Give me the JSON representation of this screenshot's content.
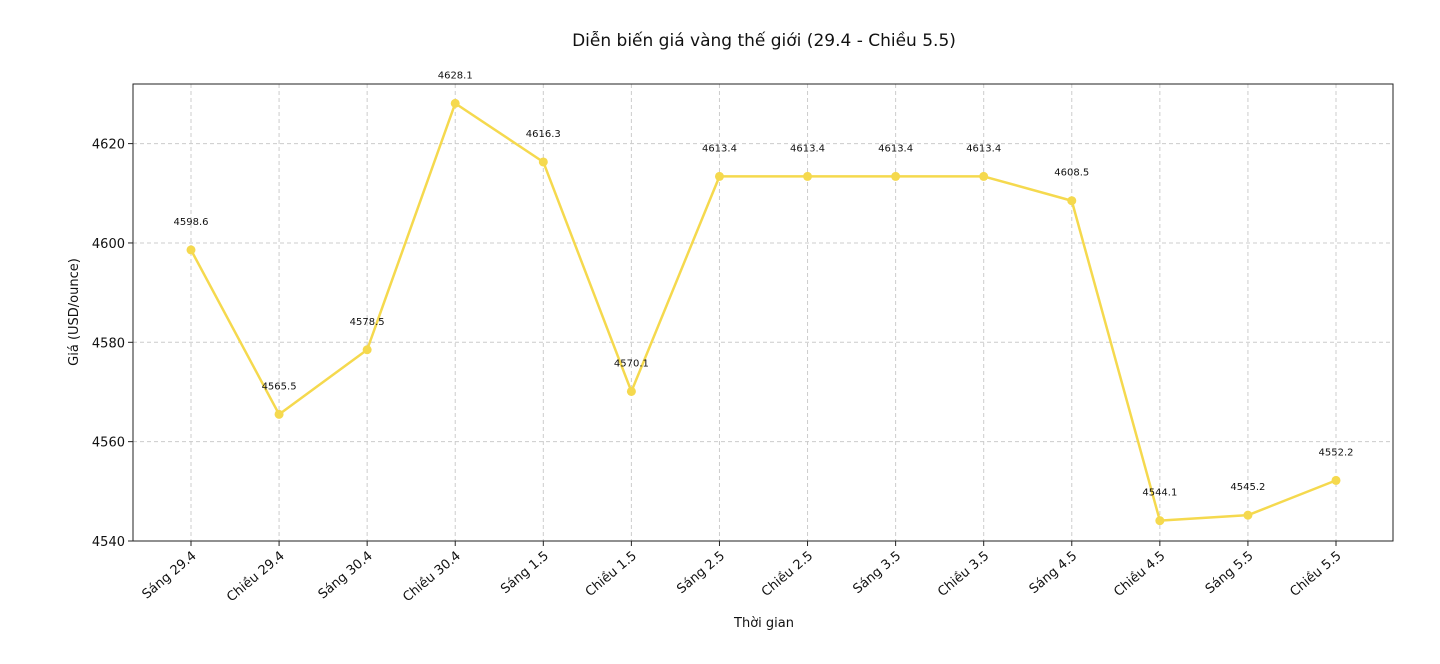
{
  "chart_data": {
    "type": "line",
    "title": "Diễn biến giá vàng thế giới (29.4 - Chiều 5.5)",
    "xlabel": "Thời gian",
    "ylabel": "Giá (USD/ounce)",
    "categories": [
      "Sáng 29.4",
      "Chiều 29.4",
      "Sáng 30.4",
      "Chiều 30.4",
      "Sáng 1.5",
      "Chiều 1.5",
      "Sáng 2.5",
      "Chiều 2.5",
      "Sáng 3.5",
      "Chiều 3.5",
      "Sáng 4.5",
      "Chiều 4.5",
      "Sáng 5.5",
      "Chiều 5.5"
    ],
    "series": [
      {
        "values": [
          4598.6,
          4565.5,
          4578.5,
          4628.1,
          4616.3,
          4570.1,
          4613.4,
          4613.4,
          4613.4,
          4613.4,
          4608.5,
          4544.1,
          4545.2,
          4552.2
        ],
        "labels": [
          "4598.6",
          "4565.5",
          "4578.5",
          "4628.1",
          "4616.3",
          "4570.1",
          "4613.4",
          "4613.4",
          "4613.4",
          "4613.4",
          "4608.5",
          "4544.1",
          "4545.2",
          "4552.2"
        ],
        "color": "#f5d94e"
      }
    ],
    "ylim": [
      4540,
      4632
    ],
    "yticks": [
      4540,
      4560,
      4580,
      4600,
      4620
    ],
    "yticklabels": [
      "4540",
      "4560",
      "4580",
      "4600",
      "4620"
    ],
    "grid": true,
    "legend": "none"
  }
}
